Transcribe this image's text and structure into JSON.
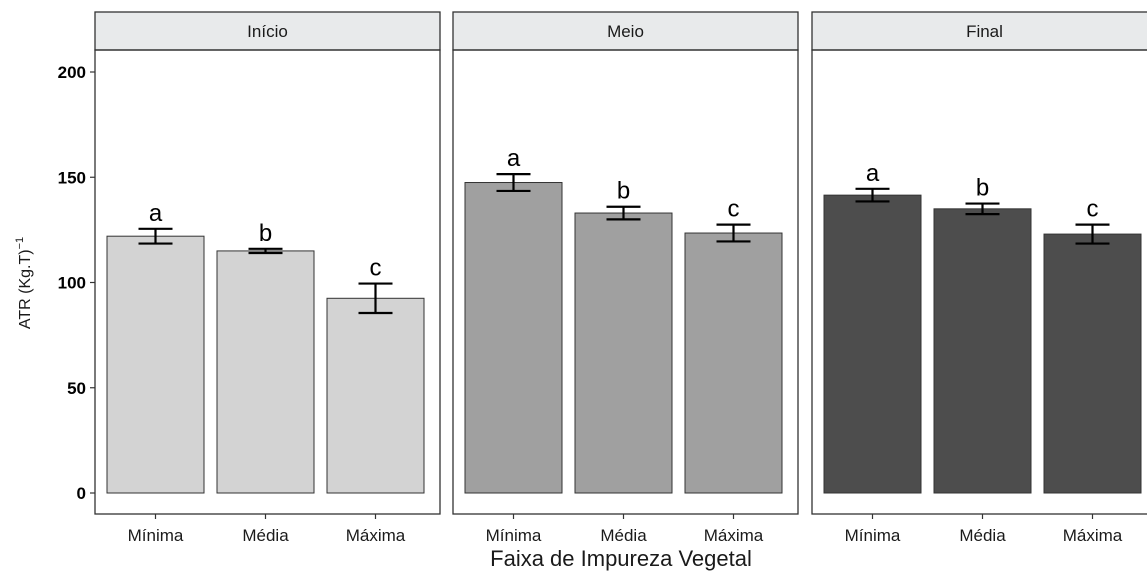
{
  "chart_data": {
    "type": "bar",
    "xlabel": "Faixa de Impureza Vegetal",
    "ylabel": "ATR (Kg.T)",
    "ylabel_superscript": "−1",
    "ylim": [
      0,
      200
    ],
    "yticks": [
      0,
      50,
      100,
      150,
      200
    ],
    "categories": [
      "Mínima",
      "Média",
      "Máxima"
    ],
    "grid": false,
    "panels": [
      {
        "title": "Início",
        "color": "#d3d3d3",
        "values": [
          122,
          115,
          92.5
        ],
        "errors": [
          3.5,
          1.0,
          7.0
        ],
        "labels": [
          "a",
          "b",
          "c"
        ]
      },
      {
        "title": "Meio",
        "color": "#a0a0a0",
        "values": [
          147.5,
          133,
          123.5
        ],
        "errors": [
          4.0,
          3.0,
          4.0
        ],
        "labels": [
          "a",
          "b",
          "c"
        ]
      },
      {
        "title": "Final",
        "color": "#4d4d4d",
        "values": [
          141.5,
          135,
          123
        ],
        "errors": [
          3.0,
          2.5,
          4.5
        ],
        "labels": [
          "a",
          "b",
          "c"
        ]
      }
    ]
  }
}
